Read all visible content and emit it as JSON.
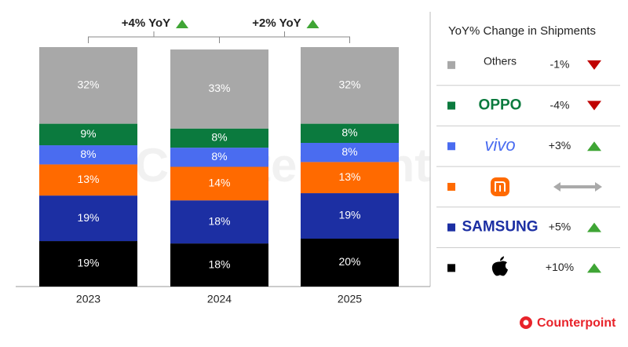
{
  "chart_data": {
    "type": "stacked_bar",
    "categories": [
      "2023",
      "2024",
      "2025"
    ],
    "ylim": [
      0,
      100
    ],
    "series": [
      {
        "color": "#000000",
        "values": [
          19,
          18,
          20
        ],
        "value_labels": [
          "19%",
          "18%",
          "20%"
        ],
        "yoy_change": {
          "value": 10,
          "label": "+10%"
        }
      },
      {
        "name": "SAMSUNG",
        "color": "#1c2fa3",
        "values": [
          19,
          18,
          19
        ],
        "value_labels": [
          "19%",
          "18%",
          "19%"
        ],
        "yoy_change": {
          "value": 5,
          "label": "+5%"
        }
      },
      {
        "color": "#ff6a00",
        "values": [
          13,
          14,
          13
        ],
        "value_labels": [
          "13%",
          "14%",
          "13%"
        ],
        "yoy_change": {
          "value": 0
        }
      },
      {
        "name": "vivo",
        "color": "#4a6cf0",
        "values": [
          8,
          8,
          8
        ],
        "value_labels": [
          "8%",
          "8%",
          "8%"
        ],
        "yoy_change": {
          "value": 3,
          "label": "+3%"
        }
      },
      {
        "name": "OPPO",
        "color": "#0b7a3e",
        "values": [
          9,
          8,
          8
        ],
        "value_labels": [
          "9%",
          "8%",
          "8%"
        ],
        "yoy_change": {
          "value": -4,
          "label": "-4%"
        }
      },
      {
        "name": "Others",
        "color": "#a8a8a8",
        "values": [
          32,
          33,
          32
        ],
        "value_labels": [
          "32%",
          "33%",
          "32%"
        ],
        "yoy_change": {
          "value": -1,
          "label": "-1%"
        }
      }
    ],
    "annotations": [
      "+4% YoY",
      "+2% YoY"
    ],
    "legend_title": "YoY% Change in Shipments",
    "source": "Counterpoint"
  }
}
